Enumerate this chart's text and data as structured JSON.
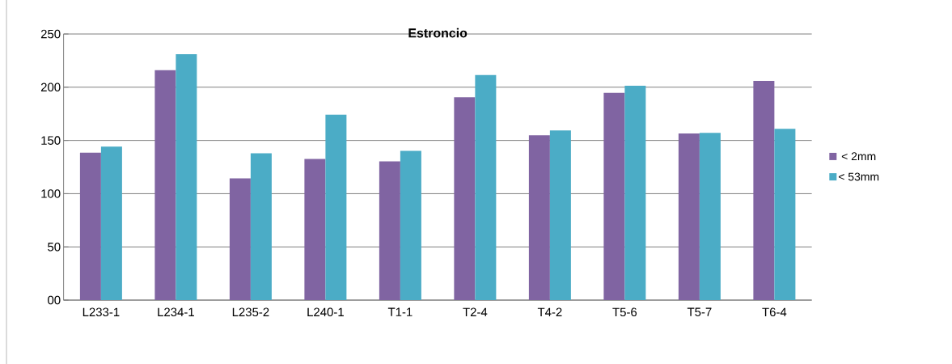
{
  "chart_data": {
    "type": "bar",
    "title": "Estroncio",
    "categories": [
      "L233-1",
      "L234-1",
      "L235-2",
      "L240-1",
      "T1-1",
      "T2-4",
      "T4-2",
      "T5-6",
      "T5-7",
      "T6-4"
    ],
    "series": [
      {
        "name": "< 2mm",
        "color": "#8064a2",
        "values": [
          138.5,
          216,
          114.4,
          132.7,
          130.4,
          190.5,
          154.8,
          194.7,
          156.5,
          206
        ]
      },
      {
        "name": "< 53mm",
        "color": "#4bacc6",
        "values": [
          144.3,
          231,
          137.9,
          174.2,
          140.2,
          211.4,
          159.4,
          201.4,
          157.1,
          160.9
        ]
      }
    ],
    "ylim": [
      0,
      250
    ],
    "yticks": [
      {
        "value": 0,
        "label": "00"
      },
      50,
      100,
      150,
      200,
      250
    ],
    "grid": "y",
    "legend": "right"
  }
}
